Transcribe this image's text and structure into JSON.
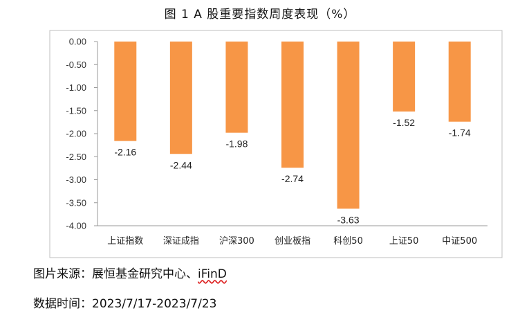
{
  "chart_data": {
    "type": "bar",
    "title": "图 1 A 股重要指数周度表现（%）",
    "categories": [
      "上证指数",
      "深证成指",
      "沪深300",
      "创业板指",
      "科创50",
      "上证50",
      "中证500"
    ],
    "values": [
      -2.16,
      -2.44,
      -1.98,
      -2.74,
      -3.63,
      -1.52,
      -1.74
    ],
    "data_labels": [
      "-2.16",
      "-2.44",
      "-1.98",
      "-2.74",
      "-3.63",
      "-1.52",
      "-1.74"
    ],
    "y_ticks": [
      "0.00",
      "-0.50",
      "-1.00",
      "-1.50",
      "-2.00",
      "-2.50",
      "-3.00",
      "-3.50",
      "-4.00"
    ],
    "ylim": [
      -4.0,
      0.0
    ],
    "bar_color": "#f79646",
    "grid": false,
    "legend": "none",
    "xlabel": "",
    "ylabel": ""
  },
  "footer": {
    "source_label": "图片来源：",
    "source_text": "展恒基金研究中心、",
    "source_ifind": "iFinD",
    "date_label": "数据时间：",
    "date_text": "2023/7/17-2023/7/23"
  }
}
